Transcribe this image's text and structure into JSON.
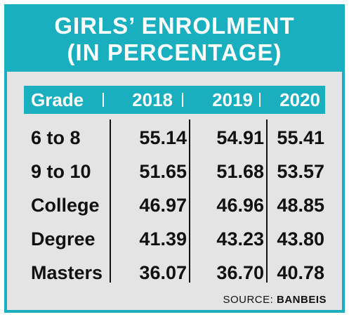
{
  "title_line1": "GIRLS’ ENROLMENT",
  "title_line2": "(IN PERCENTAGE)",
  "source_label": "SOURCE:",
  "source_name": "BANBEIS",
  "chart_data": {
    "type": "table",
    "columns": [
      "Grade",
      "2018",
      "2019",
      "2020"
    ],
    "rows": [
      [
        "6 to 8",
        "55.14",
        "54.91",
        "55.41"
      ],
      [
        "9 to 10",
        "51.65",
        "51.68",
        "53.57"
      ],
      [
        "College",
        "46.97",
        "46.96",
        "48.85"
      ],
      [
        "Degree",
        "41.39",
        "43.23",
        "43.80"
      ],
      [
        "Masters",
        "36.07",
        "36.70",
        "40.78"
      ]
    ],
    "header_color": "#1aafbf",
    "background_color": "#e4e4e4"
  }
}
